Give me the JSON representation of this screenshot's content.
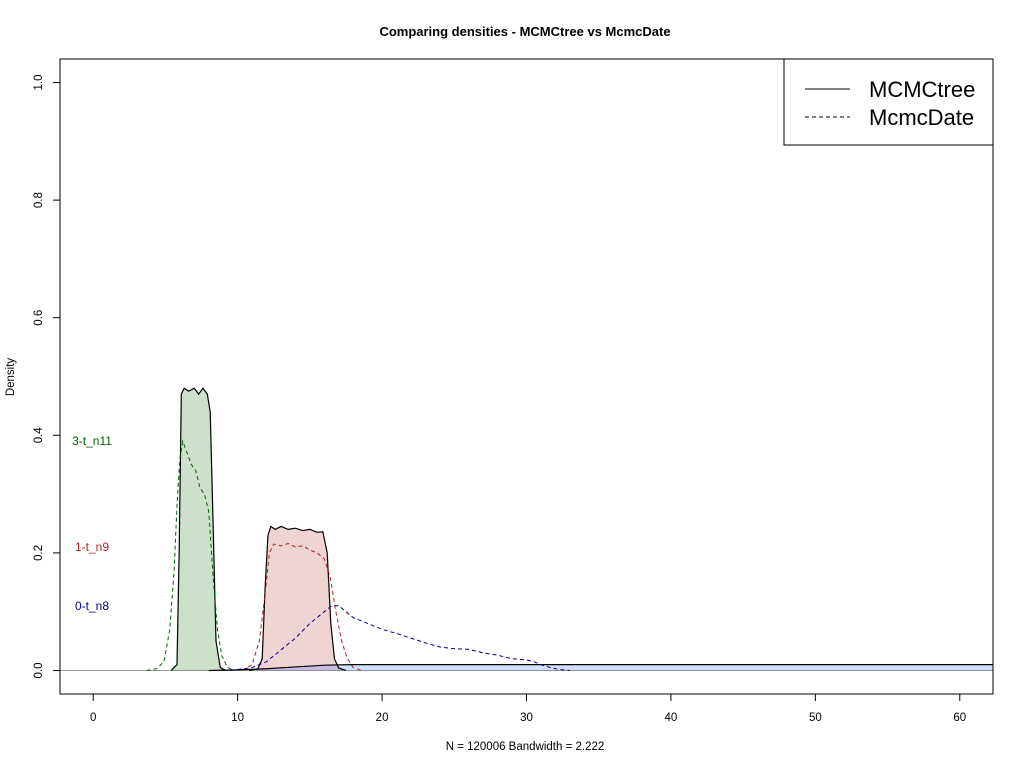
{
  "chart_data": {
    "type": "area",
    "title": "Comparing densities - MCMCtree vs McmcDate",
    "xlabel": "N = 120006   Bandwidth = 2.222",
    "ylabel": "Density",
    "xlim": [
      -2.3,
      62.3
    ],
    "ylim": [
      -0.04,
      1.04
    ],
    "x_ticks": [
      0,
      10,
      20,
      30,
      40,
      50,
      60
    ],
    "y_ticks": [
      0.0,
      0.2,
      0.4,
      0.6,
      0.8,
      1.0
    ],
    "x_tick_labels": [
      "0",
      "10",
      "20",
      "30",
      "40",
      "50",
      "60"
    ],
    "y_tick_labels": [
      "0.0",
      "0.2",
      "0.4",
      "0.6",
      "0.8",
      "1.0"
    ],
    "grid": false,
    "legend_position": "top-right",
    "legend": [
      {
        "label": "MCMCtree",
        "style": "solid"
      },
      {
        "label": "McmcDate",
        "style": "dashed"
      }
    ],
    "series": [
      {
        "node": "3-t_n11",
        "color": "#006400",
        "fill": "#006400",
        "MCMCtree": {
          "x": [
            5.4,
            5.8,
            5.95,
            6.1,
            6.3,
            6.6,
            7.0,
            7.3,
            7.6,
            7.9,
            8.1,
            8.3,
            8.5,
            8.8,
            9.2
          ],
          "y": [
            0.0,
            0.01,
            0.2,
            0.47,
            0.48,
            0.475,
            0.48,
            0.47,
            0.48,
            0.47,
            0.44,
            0.25,
            0.05,
            0.005,
            0.0
          ]
        },
        "McmcDate": {
          "x": [
            3.7,
            4.4,
            4.9,
            5.3,
            5.6,
            5.8,
            6.0,
            6.2,
            6.5,
            6.8,
            7.1,
            7.4,
            7.7,
            8.0,
            8.3,
            8.6,
            8.9,
            9.3,
            9.8
          ],
          "y": [
            0.0,
            0.003,
            0.015,
            0.07,
            0.17,
            0.28,
            0.36,
            0.39,
            0.37,
            0.35,
            0.34,
            0.31,
            0.3,
            0.27,
            0.16,
            0.07,
            0.025,
            0.005,
            0.0
          ]
        },
        "label_y": 0.39
      },
      {
        "node": "1-t_n9",
        "color": "#b22222",
        "fill": "#b22222",
        "MCMCtree": {
          "x": [
            10.8,
            11.4,
            11.7,
            11.9,
            12.1,
            12.3,
            12.6,
            13.0,
            13.5,
            14.0,
            14.5,
            15.0,
            15.5,
            15.9,
            16.2,
            16.45,
            16.7,
            17.0,
            17.5
          ],
          "y": [
            0.0,
            0.003,
            0.02,
            0.14,
            0.23,
            0.245,
            0.24,
            0.245,
            0.24,
            0.242,
            0.238,
            0.24,
            0.235,
            0.236,
            0.2,
            0.08,
            0.02,
            0.004,
            0.0
          ]
        },
        "McmcDate": {
          "x": [
            10.3,
            11.0,
            11.5,
            11.9,
            12.2,
            12.5,
            13.0,
            13.5,
            14.0,
            14.5,
            15.0,
            15.5,
            16.0,
            16.4,
            16.8,
            17.2,
            17.6,
            18.0,
            18.6
          ],
          "y": [
            0.0,
            0.01,
            0.05,
            0.13,
            0.2,
            0.215,
            0.212,
            0.216,
            0.21,
            0.212,
            0.205,
            0.2,
            0.19,
            0.16,
            0.1,
            0.05,
            0.02,
            0.005,
            0.0
          ]
        },
        "label_y": 0.21
      },
      {
        "node": "0-t_n8",
        "color": "#00008b",
        "fill": "#1e64ff",
        "MCMCtree": {
          "x": [
            8.0,
            10.0,
            12.0,
            14.0,
            16.0,
            18.0,
            20.0,
            30.0,
            40.0,
            50.0,
            62.3
          ],
          "y": [
            0.0,
            0.001,
            0.003,
            0.006,
            0.009,
            0.01,
            0.01,
            0.01,
            0.01,
            0.01,
            0.01
          ]
        },
        "McmcDate": {
          "x": [
            9.5,
            11.0,
            12.0,
            13.0,
            14.0,
            15.0,
            16.0,
            16.5,
            17.0,
            17.5,
            18.0,
            19.0,
            20.0,
            21.0,
            22.0,
            23.0,
            24.0,
            25.0,
            26.0,
            27.0,
            28.0,
            29.0,
            30.0,
            30.5,
            31.0,
            31.5,
            32.0,
            32.5,
            33.0
          ],
          "y": [
            0.0,
            0.005,
            0.015,
            0.035,
            0.055,
            0.08,
            0.1,
            0.11,
            0.11,
            0.1,
            0.09,
            0.08,
            0.07,
            0.063,
            0.055,
            0.047,
            0.04,
            0.037,
            0.036,
            0.03,
            0.026,
            0.02,
            0.018,
            0.015,
            0.01,
            0.006,
            0.003,
            0.001,
            0.0
          ]
        },
        "label_y": 0.11
      }
    ]
  }
}
